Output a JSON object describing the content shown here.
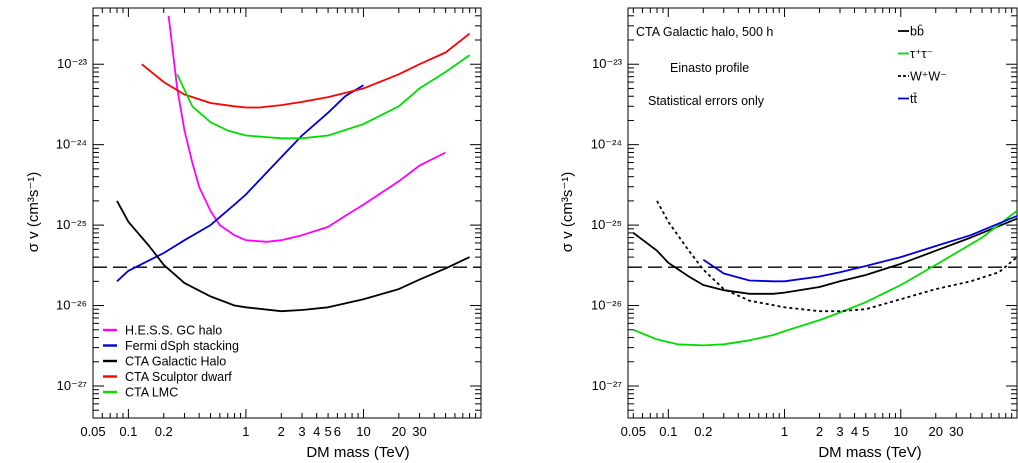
{
  "chart_data": [
    {
      "type": "line",
      "xlabel": "DM mass (TeV)",
      "ylabel": "σ v (cm³s⁻¹)",
      "xscale": "log",
      "yscale": "log",
      "xlim": [
        0.05,
        100
      ],
      "ylim": [
        4e-28,
        5e-23
      ],
      "x_tick_labels": [
        "0.05",
        "0.1",
        "0.2",
        "1",
        "2",
        "3",
        "4",
        "5",
        "6",
        "10",
        "20",
        "30"
      ],
      "y_tick_labels": [
        "10⁻²⁷",
        "10⁻²⁶",
        "10⁻²⁵",
        "10⁻²⁴",
        "10⁻²³"
      ],
      "legend_position": "bottom-left",
      "reference_line": {
        "y": 3e-26,
        "style": "dashed"
      },
      "series": [
        {
          "name": "H.E.S.S. GC halo",
          "color": "#ff00ff",
          "x": [
            0.22,
            0.26,
            0.3,
            0.35,
            0.4,
            0.5,
            0.6,
            0.8,
            1.0,
            1.5,
            2.0,
            3.0,
            5.0,
            7.0,
            10,
            20,
            30,
            50
          ],
          "y": [
            4e-23,
            5e-24,
            1.5e-24,
            6e-25,
            3e-25,
            1.5e-25,
            1e-25,
            7.5e-26,
            6.5e-26,
            6.2e-26,
            6.5e-26,
            7.5e-26,
            9.5e-26,
            1.3e-25,
            1.8e-25,
            3.5e-25,
            5.5e-25,
            8e-25
          ]
        },
        {
          "name": "Fermi dSph stacking",
          "color": "#0000dd",
          "x": [
            0.08,
            0.1,
            0.2,
            0.3,
            0.5,
            0.8,
            1.0,
            1.5,
            2.0,
            3.0,
            5.0,
            7.0,
            10
          ],
          "y": [
            2e-26,
            2.7e-26,
            4.5e-26,
            6.5e-26,
            1e-25,
            1.8e-25,
            2.4e-25,
            4.5e-25,
            7e-25,
            1.3e-24,
            2.5e-24,
            4e-24,
            5.5e-24
          ]
        },
        {
          "name": "CTA Galactic Halo",
          "color": "#000000",
          "x": [
            0.08,
            0.1,
            0.15,
            0.2,
            0.3,
            0.5,
            0.8,
            1.0,
            2.0,
            3.0,
            5.0,
            10,
            20,
            30,
            50,
            80
          ],
          "y": [
            2e-25,
            1.1e-25,
            5.5e-26,
            3.2e-26,
            1.9e-26,
            1.3e-26,
            1e-26,
            9.5e-27,
            8.5e-27,
            8.8e-27,
            9.5e-27,
            1.2e-26,
            1.6e-26,
            2.1e-26,
            2.9e-26,
            4e-26
          ]
        },
        {
          "name": "CTA Sculptor dwarf",
          "color": "#ff0000",
          "x": [
            0.13,
            0.2,
            0.3,
            0.5,
            0.8,
            1.0,
            1.3,
            2.0,
            3.0,
            5.0,
            10,
            20,
            30,
            50,
            80
          ],
          "y": [
            1e-23,
            6e-24,
            4.2e-24,
            3.3e-24,
            3e-24,
            2.9e-24,
            2.9e-24,
            3.1e-24,
            3.4e-24,
            3.9e-24,
            5e-24,
            7.5e-24,
            1e-23,
            1.4e-23,
            2.4e-23
          ]
        },
        {
          "name": "CTA LMC",
          "color": "#00dd00",
          "x": [
            0.26,
            0.35,
            0.5,
            0.7,
            1.0,
            2.0,
            3.0,
            5.0,
            10,
            20,
            30,
            50,
            80
          ],
          "y": [
            7.5e-24,
            3e-24,
            1.9e-24,
            1.5e-24,
            1.3e-24,
            1.2e-24,
            1.2e-24,
            1.3e-24,
            1.8e-24,
            3e-24,
            5e-24,
            8e-24,
            1.3e-23
          ]
        }
      ]
    },
    {
      "type": "line",
      "xlabel": "DM mass (TeV)",
      "ylabel": "σ v (cm³s⁻¹)",
      "xscale": "log",
      "yscale": "log",
      "xlim": [
        0.045,
        100
      ],
      "ylim": [
        4e-28,
        5e-23
      ],
      "x_tick_labels": [
        "0.05",
        "0.1",
        "0.2",
        "1",
        "2",
        "3",
        "4",
        "5",
        "10",
        "20",
        "30"
      ],
      "y_tick_labels": [
        "10⁻²⁷",
        "10⁻²⁶",
        "10⁻²⁵",
        "10⁻²⁴",
        "10⁻²³"
      ],
      "legend_position": "top-right",
      "annotations": [
        "CTA Galactic halo, 500 h",
        "Einasto profile",
        "Statistical errors only"
      ],
      "reference_line": {
        "y": 3e-26,
        "style": "dashed"
      },
      "series": [
        {
          "name": "bb̄",
          "color": "#000000",
          "dash": "solid",
          "x": [
            0.05,
            0.08,
            0.1,
            0.15,
            0.2,
            0.3,
            0.5,
            0.8,
            1.0,
            2.0,
            3.0,
            5.0,
            10,
            20,
            40,
            100
          ],
          "y": [
            8e-26,
            4.8e-26,
            3.4e-26,
            2.3e-26,
            1.8e-26,
            1.55e-26,
            1.4e-26,
            1.4e-26,
            1.45e-26,
            1.7e-26,
            2e-26,
            2.4e-26,
            3.3e-26,
            4.8e-26,
            7e-26,
            1.2e-25
          ]
        },
        {
          "name": "τ⁺τ⁻",
          "color": "#00dd00",
          "dash": "solid",
          "x": [
            0.05,
            0.08,
            0.12,
            0.2,
            0.3,
            0.5,
            0.8,
            1.0,
            2.0,
            3.0,
            5.0,
            10,
            20,
            50,
            100
          ],
          "y": [
            5e-27,
            3.8e-27,
            3.3e-27,
            3.2e-27,
            3.3e-27,
            3.7e-27,
            4.3e-27,
            4.8e-27,
            6.6e-27,
            8.2e-27,
            1.1e-26,
            1.8e-26,
            3.2e-26,
            7e-26,
            1.5e-25
          ]
        },
        {
          "name": "W⁺W⁻",
          "color": "#000000",
          "dash": "dotted",
          "x": [
            0.08,
            0.1,
            0.15,
            0.2,
            0.3,
            0.5,
            1.0,
            2.0,
            3.0,
            5.0,
            10,
            20,
            40,
            70,
            100
          ],
          "y": [
            2e-25,
            1.1e-25,
            4.8e-26,
            2.8e-26,
            1.6e-26,
            1.15e-26,
            9.5e-27,
            8.5e-27,
            8.5e-27,
            9e-27,
            1.2e-26,
            1.6e-26,
            2e-26,
            2.6e-26,
            4e-26
          ]
        },
        {
          "name": "tt̄",
          "color": "#0000dd",
          "dash": "solid",
          "x": [
            0.2,
            0.25,
            0.3,
            0.5,
            0.8,
            1.0,
            2.0,
            3.0,
            5.0,
            10,
            20,
            40,
            100
          ],
          "y": [
            3.7e-26,
            3e-26,
            2.5e-26,
            2.05e-26,
            2e-26,
            2e-26,
            2.3e-26,
            2.6e-26,
            3.1e-26,
            4e-26,
            5.5e-26,
            7.5e-26,
            1.3e-25
          ]
        }
      ]
    }
  ]
}
